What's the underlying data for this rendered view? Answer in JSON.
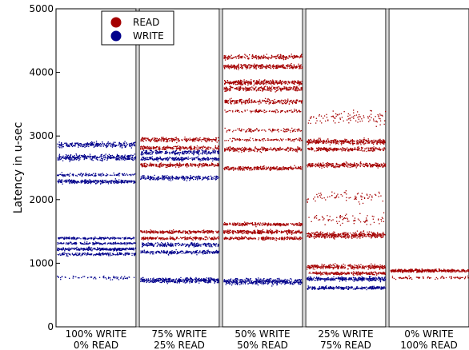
{
  "chart_data": {
    "type": "scatter",
    "ylabel": "Latency in u-sec",
    "ylim": [
      0,
      5000
    ],
    "yticks": [
      "0",
      "1000",
      "2000",
      "3000",
      "4000",
      "5000"
    ],
    "legend": {
      "placement": "top-left",
      "entries": [
        {
          "name": "READ",
          "color": "#a50000"
        },
        {
          "name": "WRITE",
          "color": "#00008b"
        }
      ]
    },
    "panels": [
      {
        "label_line1": "100% WRITE",
        "label_line2": "0% READ",
        "read_bands": [],
        "write_bands": [
          [
            2870,
            70,
            1
          ],
          [
            2670,
            80,
            1.3
          ],
          [
            2400,
            40,
            0.5
          ],
          [
            2290,
            50,
            1.1
          ],
          [
            1400,
            30,
            0.7
          ],
          [
            1320,
            30,
            0.7
          ],
          [
            1230,
            40,
            1
          ],
          [
            1150,
            40,
            0.7
          ],
          [
            780,
            50,
            0.25
          ]
        ]
      },
      {
        "label_line1": "75% WRITE",
        "label_line2": "25% READ",
        "read_bands": [
          [
            2950,
            60,
            0.9
          ],
          [
            2820,
            50,
            0.8
          ],
          [
            2550,
            50,
            1
          ],
          [
            1500,
            40,
            1
          ],
          [
            1400,
            40,
            0.8
          ]
        ],
        "write_bands": [
          [
            2750,
            60,
            0.9
          ],
          [
            2650,
            50,
            0.9
          ],
          [
            2350,
            60,
            0.9
          ],
          [
            1300,
            50,
            0.9
          ],
          [
            1180,
            50,
            0.9
          ],
          [
            740,
            70,
            1.5
          ]
        ]
      },
      {
        "label_line1": "50% WRITE",
        "label_line2": "50% READ",
        "read_bands": [
          [
            4250,
            60,
            0.8
          ],
          [
            4100,
            60,
            1.2
          ],
          [
            3850,
            60,
            1.2
          ],
          [
            3750,
            60,
            1
          ],
          [
            3550,
            60,
            0.9
          ],
          [
            3400,
            40,
            0.4
          ],
          [
            3100,
            50,
            0.4
          ],
          [
            2950,
            40,
            0.4
          ],
          [
            2800,
            60,
            0.9
          ],
          [
            2500,
            50,
            1
          ],
          [
            1620,
            40,
            0.9
          ],
          [
            1500,
            50,
            1.2
          ],
          [
            1400,
            40,
            0.8
          ]
        ],
        "write_bands": [
          [
            720,
            80,
            1.6
          ]
        ]
      },
      {
        "label_line1": "25% WRITE",
        "label_line2": "75% READ",
        "read_bands": [
          [
            3300,
            200,
            0.4
          ],
          [
            2920,
            70,
            1.3
          ],
          [
            2800,
            50,
            0.9
          ],
          [
            2550,
            60,
            1.2
          ],
          [
            2050,
            150,
            0.3
          ],
          [
            1700,
            150,
            0.3
          ],
          [
            1450,
            80,
            1.6
          ],
          [
            950,
            60,
            1.2
          ],
          [
            850,
            40,
            0.9
          ]
        ],
        "write_bands": [
          [
            760,
            50,
            1.2
          ],
          [
            620,
            40,
            1
          ]
        ]
      },
      {
        "label_line1": "0% WRITE",
        "label_line2": "100% READ",
        "read_bands": [
          [
            890,
            40,
            1.4
          ],
          [
            780,
            40,
            0.3
          ]
        ],
        "write_bands": []
      }
    ]
  }
}
